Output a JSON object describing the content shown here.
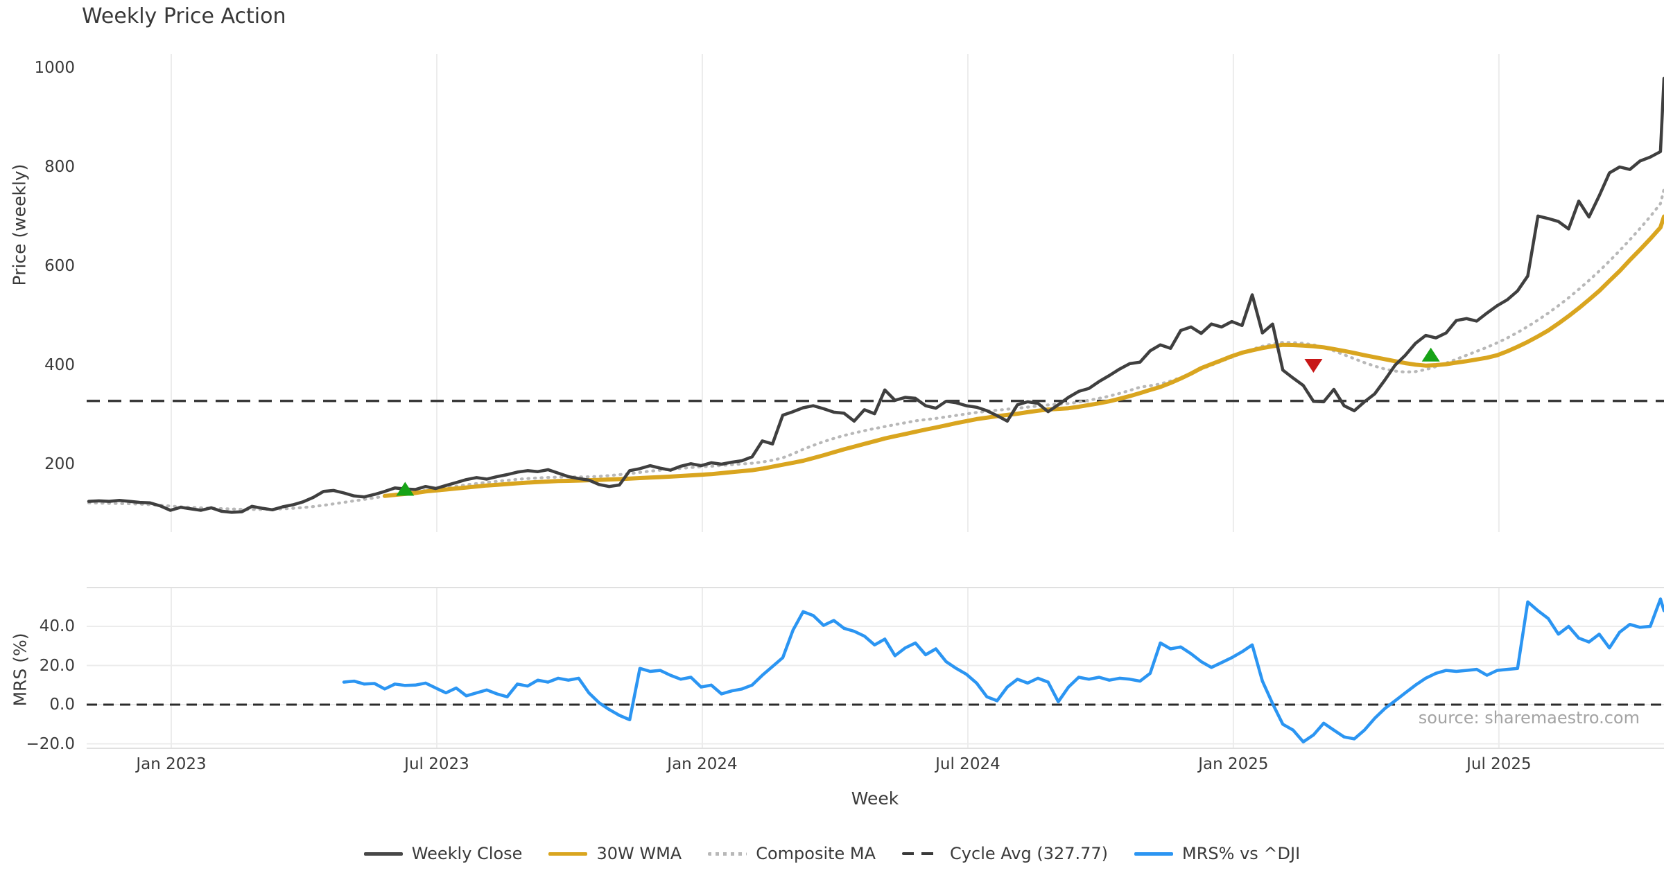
{
  "title": "Weekly Price Action",
  "source_note": "source: sharemaestro.com",
  "xlabel": "Week",
  "colors": {
    "weekly_close": "#3f3f3f",
    "wma": "#d9a51f",
    "composite": "#b8b8b8",
    "cycle_avg": "#3a3a3a",
    "mrs": "#2b95f2",
    "buy_marker": "#17a317",
    "sell_marker": "#c81717",
    "gridline": "#ececec",
    "panel_spine": "#e0e0e0",
    "zero_dash": "#2b2b2b"
  },
  "legend": [
    {
      "label": "Weekly Close",
      "style": "solid",
      "color": "#474747"
    },
    {
      "label": "30W WMA",
      "style": "solid",
      "color": "#d9a51f"
    },
    {
      "label": "Composite MA",
      "style": "dotted",
      "color": "#b8b8b8"
    },
    {
      "label": "Cycle Avg (327.77)",
      "style": "dashed",
      "color": "#3a3a3a"
    },
    {
      "label": "MRS% vs ^DJI",
      "style": "solid",
      "color": "#2b95f2"
    }
  ],
  "chart_data": [
    {
      "panel": "price",
      "type": "line",
      "title": "Weekly Price Action",
      "ylabel": "Price (weekly)",
      "ylim": [
        60,
        1030
      ],
      "yticks": [
        {
          "label": "200",
          "value": 200
        },
        {
          "label": "400",
          "value": 400
        },
        {
          "label": "600",
          "value": 600
        },
        {
          "label": "800",
          "value": 800
        },
        {
          "label": "1000",
          "value": 1000
        }
      ],
      "grid": "vertical-only",
      "cycle_avg_value": 327.77,
      "series": [
        {
          "name": "Weekly Close",
          "start_week": 0,
          "values": [
            125,
            126,
            125,
            127,
            125,
            123,
            122,
            116,
            107,
            113,
            110,
            107,
            112,
            105,
            103,
            104,
            115,
            111,
            108,
            114,
            118,
            124,
            133,
            145,
            147,
            142,
            136,
            134,
            139,
            145,
            152,
            150,
            149,
            155,
            151,
            157,
            163,
            169,
            173,
            170,
            175,
            179,
            184,
            187,
            185,
            189,
            182,
            175,
            171,
            168,
            159,
            155,
            158,
            187,
            191,
            197,
            192,
            188,
            196,
            201,
            197,
            203,
            200,
            204,
            207,
            215,
            247,
            241,
            299,
            306,
            314,
            318,
            312,
            305,
            303,
            287,
            310,
            302,
            350,
            329,
            335,
            333,
            318,
            313,
            327,
            324,
            318,
            315,
            308,
            298,
            287,
            320,
            326,
            323,
            306,
            320,
            335,
            347,
            353,
            367,
            379,
            392,
            403,
            406,
            429,
            441,
            434,
            470,
            477,
            464,
            483,
            477,
            488,
            480,
            542,
            465,
            483,
            390,
            374,
            359,
            327,
            326,
            351,
            318,
            308,
            326,
            342,
            370,
            400,
            420,
            444,
            460,
            455,
            465,
            490,
            494,
            489,
            505,
            520,
            532,
            550,
            580,
            701,
            696,
            690,
            675,
            731,
            699,
            742,
            788,
            800,
            795,
            812,
            820,
            831,
            979,
            958
          ]
        },
        {
          "name": "30W WMA",
          "start_week": 29,
          "values": [
            136,
            138,
            140,
            142,
            145,
            147,
            149,
            151,
            153,
            155,
            157,
            158.5,
            160,
            161.5,
            163,
            164,
            165,
            166,
            166.5,
            167,
            167.7,
            168.4,
            169.2,
            170,
            171,
            172,
            173,
            174,
            175,
            176.2,
            177.5,
            178.7,
            180,
            182,
            184,
            186,
            188,
            191,
            195,
            199,
            203,
            207,
            212.5,
            218,
            224,
            230,
            235.5,
            241,
            246.5,
            252,
            256.5,
            261,
            265.5,
            270,
            274,
            278.5,
            283,
            287,
            291,
            294,
            297,
            299.5,
            302,
            305,
            308,
            310.5,
            311.8,
            313,
            316,
            319.5,
            323,
            327,
            332,
            337.5,
            343.5,
            350,
            356,
            364,
            373,
            383,
            394,
            402,
            410,
            418,
            425,
            430,
            434.5,
            438,
            441,
            440.5,
            439.5,
            438,
            436,
            432.5,
            428.5,
            424.5,
            420,
            416,
            412,
            408,
            404,
            401,
            399,
            400,
            402,
            405,
            408,
            411.5,
            415,
            420,
            428,
            437,
            447,
            458,
            470,
            484,
            499,
            515,
            532,
            550,
            570,
            590,
            612,
            633,
            655,
            678,
            700
          ]
        },
        {
          "name": "Composite MA",
          "start_week": 0,
          "values": [
            122,
            121.5,
            121,
            120.7,
            120.3,
            119.5,
            118.5,
            117,
            115.5,
            114,
            113,
            112,
            111,
            110.3,
            109.7,
            109,
            108.7,
            108.8,
            109.2,
            110,
            111,
            112.5,
            114.5,
            117,
            120,
            123,
            126,
            129,
            132,
            135.5,
            138.5,
            141,
            144,
            147,
            150,
            152.5,
            155.5,
            158.5,
            161,
            163.5,
            165.5,
            167.5,
            169.5,
            171,
            172.3,
            173.3,
            174,
            174.3,
            174.3,
            174.5,
            175.5,
            177,
            179,
            181,
            183.5,
            186,
            188,
            190,
            191.8,
            193.3,
            194.7,
            196,
            197.5,
            199,
            200.5,
            202,
            204.5,
            208,
            213,
            221,
            230,
            238,
            245.5,
            252,
            258,
            263,
            267.7,
            272,
            276,
            280,
            283.7,
            287.5,
            290,
            292.5,
            295.5,
            298.5,
            301.5,
            304.5,
            307,
            309,
            311,
            313,
            315.3,
            317.5,
            319.7,
            321,
            322.5,
            325.5,
            329,
            333,
            337.5,
            343,
            349,
            355.5,
            358.5,
            362,
            368,
            375,
            383,
            392,
            400,
            408,
            416,
            424,
            432,
            438,
            443,
            446,
            445.5,
            444,
            441,
            436,
            429,
            421,
            413,
            405,
            398,
            392,
            388,
            386,
            387,
            391,
            397,
            404,
            412,
            420,
            428,
            436,
            445,
            455,
            466,
            478,
            491,
            505,
            520,
            536,
            553,
            571,
            590,
            610,
            631,
            653,
            676,
            700,
            726,
            755
          ]
        },
        {
          "name": "Cycle Avg",
          "constant": 327.77
        }
      ],
      "markers": [
        {
          "kind": "buy",
          "week": 31,
          "price": 149
        },
        {
          "kind": "sell",
          "week": 120,
          "price": 400
        },
        {
          "kind": "buy",
          "week": 131.5,
          "price": 420
        }
      ]
    },
    {
      "panel": "mrs",
      "type": "line",
      "ylabel": "MRS (%)",
      "ylim": [
        -22,
        59
      ],
      "yticks": [
        {
          "label": "−20.0",
          "value": -20
        },
        {
          "label": "0.0",
          "value": 0
        },
        {
          "label": "20.0",
          "value": 20
        },
        {
          "label": "40.0",
          "value": 40
        }
      ],
      "zero_line": 0,
      "series": [
        {
          "name": "MRS% vs ^DJI",
          "start_week": 25,
          "values": [
            11.5,
            12,
            10.5,
            10.8,
            8,
            10.5,
            9.8,
            10,
            11,
            8.5,
            6,
            8.5,
            4.5,
            6,
            7.5,
            5.5,
            4,
            10.5,
            9.5,
            12.5,
            11.5,
            13.5,
            12.5,
            13.5,
            6,
            1,
            -2.5,
            -5.5,
            -7.7,
            18.5,
            17,
            17.5,
            15,
            13,
            14,
            9,
            10,
            5.5,
            7,
            8,
            10,
            15,
            19.5,
            24,
            38,
            47.5,
            45.5,
            40.5,
            43,
            39,
            37.5,
            35,
            30.5,
            33.5,
            25,
            29,
            31.5,
            25.5,
            28.5,
            22,
            18.5,
            15.5,
            11,
            4,
            2,
            9,
            13,
            11,
            13.5,
            11.5,
            1.5,
            9,
            14,
            13,
            14,
            12.5,
            13.5,
            13,
            12,
            16,
            31.5,
            28.5,
            29.5,
            26,
            22,
            19,
            21.5,
            24,
            27,
            30.5,
            12,
            0.5,
            -10,
            -13,
            -19,
            -15.5,
            -9.5,
            -13,
            -16.5,
            -17.5,
            -13,
            -7,
            -2,
            2,
            6,
            10,
            13.5,
            16,
            17.5,
            17,
            17.5,
            18,
            15,
            17.5,
            18,
            18.5,
            52.5,
            48,
            44,
            36,
            40,
            34,
            32,
            36,
            29,
            37,
            41,
            39.5,
            40,
            54,
            48
          ]
        }
      ]
    }
  ],
  "x_axis": {
    "label": "Week",
    "ticks": [
      {
        "label": "Jan 2023",
        "month_offset": 0
      },
      {
        "label": "Jul 2023",
        "month_offset": 6
      },
      {
        "label": "Jan 2024",
        "month_offset": 12
      },
      {
        "label": "Jul 2024",
        "month_offset": 18
      },
      {
        "label": "Jan 2025",
        "month_offset": 24
      },
      {
        "label": "Jul 2025",
        "month_offset": 30
      }
    ]
  }
}
